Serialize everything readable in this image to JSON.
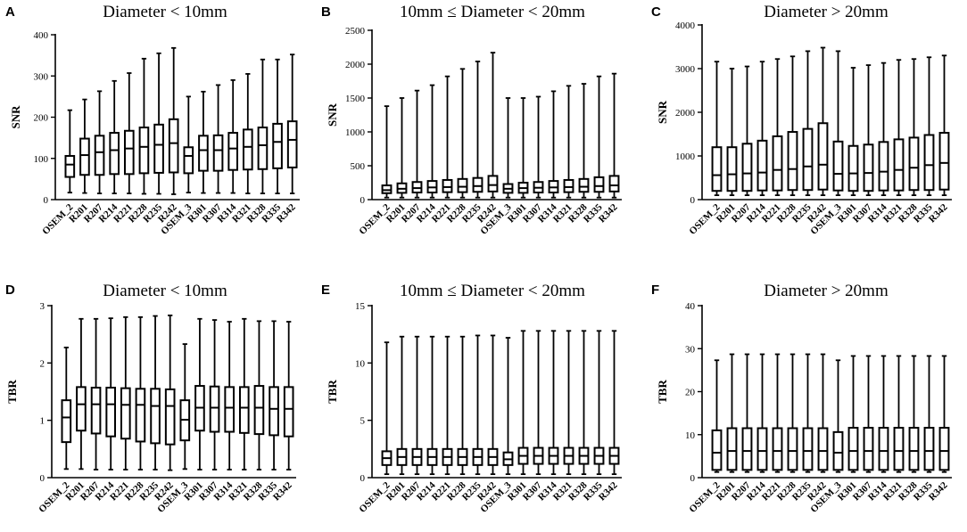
{
  "chart_data": [
    {
      "letter": "A",
      "type": "boxplot",
      "title": "Diameter < 10mm",
      "ylabel": "SNR",
      "ylim": [
        0,
        400
      ],
      "yticks": [
        "0",
        "100",
        "200",
        "300",
        "400"
      ],
      "categories": [
        "OSEM_2",
        "R201",
        "R207",
        "R214",
        "R221",
        "R228",
        "R235",
        "R242",
        "OSEM_3",
        "R301",
        "R307",
        "R314",
        "R321",
        "R328",
        "R335",
        "R342"
      ],
      "boxes": [
        {
          "min": 17,
          "q1": 55,
          "median": 85,
          "q3": 106,
          "max": 217
        },
        {
          "min": 16,
          "q1": 60,
          "median": 108,
          "q3": 148,
          "max": 243
        },
        {
          "min": 15,
          "q1": 60,
          "median": 115,
          "q3": 155,
          "max": 263
        },
        {
          "min": 15,
          "q1": 62,
          "median": 120,
          "q3": 162,
          "max": 288
        },
        {
          "min": 15,
          "q1": 62,
          "median": 124,
          "q3": 167,
          "max": 307
        },
        {
          "min": 14,
          "q1": 64,
          "median": 128,
          "q3": 175,
          "max": 342
        },
        {
          "min": 14,
          "q1": 65,
          "median": 133,
          "q3": 182,
          "max": 355
        },
        {
          "min": 13,
          "q1": 66,
          "median": 137,
          "q3": 195,
          "max": 368
        },
        {
          "min": 17,
          "q1": 64,
          "median": 106,
          "q3": 127,
          "max": 250
        },
        {
          "min": 16,
          "q1": 70,
          "median": 120,
          "q3": 155,
          "max": 262
        },
        {
          "min": 16,
          "q1": 70,
          "median": 120,
          "q3": 156,
          "max": 278
        },
        {
          "min": 16,
          "q1": 72,
          "median": 124,
          "q3": 162,
          "max": 290
        },
        {
          "min": 15,
          "q1": 73,
          "median": 128,
          "q3": 170,
          "max": 305
        },
        {
          "min": 15,
          "q1": 74,
          "median": 132,
          "q3": 175,
          "max": 340
        },
        {
          "min": 15,
          "q1": 76,
          "median": 140,
          "q3": 184,
          "max": 340
        },
        {
          "min": 15,
          "q1": 78,
          "median": 145,
          "q3": 190,
          "max": 352
        }
      ]
    },
    {
      "letter": "B",
      "type": "boxplot",
      "title": "10mm ≤ Diameter < 20mm",
      "ylabel": "SNR",
      "ylim": [
        0,
        2500
      ],
      "yticks": [
        "0",
        "500",
        "1000",
        "1500",
        "2000",
        "2500"
      ],
      "categories": [
        "OSEM_2",
        "R201",
        "R207",
        "R214",
        "R221",
        "R228",
        "R235",
        "R242",
        "OSEM_3",
        "R301",
        "R307",
        "R314",
        "R321",
        "R328",
        "R335",
        "R342"
      ],
      "boxes": [
        {
          "min": 30,
          "q1": 95,
          "median": 140,
          "q3": 210,
          "max": 1380
        },
        {
          "min": 30,
          "q1": 100,
          "median": 160,
          "q3": 240,
          "max": 1500
        },
        {
          "min": 30,
          "q1": 105,
          "median": 170,
          "q3": 260,
          "max": 1610
        },
        {
          "min": 30,
          "q1": 105,
          "median": 180,
          "q3": 275,
          "max": 1690
        },
        {
          "min": 30,
          "q1": 110,
          "median": 185,
          "q3": 290,
          "max": 1820
        },
        {
          "min": 30,
          "q1": 110,
          "median": 190,
          "q3": 305,
          "max": 1930
        },
        {
          "min": 30,
          "q1": 115,
          "median": 200,
          "q3": 320,
          "max": 2040
        },
        {
          "min": 30,
          "q1": 120,
          "median": 215,
          "q3": 350,
          "max": 2170
        },
        {
          "min": 30,
          "q1": 100,
          "median": 160,
          "q3": 230,
          "max": 1500
        },
        {
          "min": 30,
          "q1": 100,
          "median": 170,
          "q3": 250,
          "max": 1500
        },
        {
          "min": 30,
          "q1": 105,
          "median": 175,
          "q3": 260,
          "max": 1520
        },
        {
          "min": 30,
          "q1": 105,
          "median": 180,
          "q3": 275,
          "max": 1600
        },
        {
          "min": 30,
          "q1": 110,
          "median": 185,
          "q3": 290,
          "max": 1680
        },
        {
          "min": 30,
          "q1": 115,
          "median": 190,
          "q3": 305,
          "max": 1710
        },
        {
          "min": 30,
          "q1": 115,
          "median": 200,
          "q3": 330,
          "max": 1820
        },
        {
          "min": 30,
          "q1": 120,
          "median": 210,
          "q3": 350,
          "max": 1860
        }
      ]
    },
    {
      "letter": "C",
      "type": "boxplot",
      "title": "Diameter > 20mm",
      "ylabel": "SNR",
      "ylim": [
        0,
        4000
      ],
      "yticks": [
        "0",
        "1000",
        "2000",
        "3000",
        "4000"
      ],
      "categories": [
        "OSEM_2",
        "R201",
        "R207",
        "R214",
        "R221",
        "R228",
        "R235",
        "R242",
        "OSEM_3",
        "R301",
        "R307",
        "R314",
        "R321",
        "R328",
        "R335",
        "R342"
      ],
      "boxes": [
        {
          "min": 100,
          "q1": 200,
          "median": 560,
          "q3": 1200,
          "max": 3160
        },
        {
          "min": 100,
          "q1": 200,
          "median": 580,
          "q3": 1200,
          "max": 3000
        },
        {
          "min": 100,
          "q1": 200,
          "median": 600,
          "q3": 1280,
          "max": 3050
        },
        {
          "min": 100,
          "q1": 210,
          "median": 620,
          "q3": 1350,
          "max": 3160
        },
        {
          "min": 100,
          "q1": 210,
          "median": 680,
          "q3": 1450,
          "max": 3220
        },
        {
          "min": 100,
          "q1": 220,
          "median": 700,
          "q3": 1550,
          "max": 3280
        },
        {
          "min": 100,
          "q1": 220,
          "median": 760,
          "q3": 1620,
          "max": 3400
        },
        {
          "min": 100,
          "q1": 230,
          "median": 800,
          "q3": 1750,
          "max": 3480
        },
        {
          "min": 100,
          "q1": 210,
          "median": 590,
          "q3": 1330,
          "max": 3400
        },
        {
          "min": 100,
          "q1": 200,
          "median": 600,
          "q3": 1230,
          "max": 3020
        },
        {
          "min": 100,
          "q1": 200,
          "median": 610,
          "q3": 1260,
          "max": 3080
        },
        {
          "min": 100,
          "q1": 210,
          "median": 640,
          "q3": 1320,
          "max": 3130
        },
        {
          "min": 100,
          "q1": 210,
          "median": 680,
          "q3": 1380,
          "max": 3200
        },
        {
          "min": 100,
          "q1": 220,
          "median": 730,
          "q3": 1420,
          "max": 3220
        },
        {
          "min": 100,
          "q1": 220,
          "median": 790,
          "q3": 1480,
          "max": 3260
        },
        {
          "min": 100,
          "q1": 230,
          "median": 840,
          "q3": 1530,
          "max": 3300
        }
      ]
    },
    {
      "letter": "D",
      "type": "boxplot",
      "title": "Diameter < 10mm",
      "ylabel": "TBR",
      "ylim": [
        0,
        3
      ],
      "yticks": [
        "0",
        "1",
        "2",
        "3"
      ],
      "categories": [
        "OSEM_2",
        "R201",
        "R207",
        "R214",
        "R221",
        "R228",
        "R235",
        "R242",
        "OSEM_3",
        "R301",
        "R307",
        "R314",
        "R321",
        "R328",
        "R335",
        "R342"
      ],
      "boxes": [
        {
          "min": 0.15,
          "q1": 0.62,
          "median": 1.05,
          "q3": 1.35,
          "max": 2.27
        },
        {
          "min": 0.15,
          "q1": 0.82,
          "median": 1.28,
          "q3": 1.58,
          "max": 2.77
        },
        {
          "min": 0.14,
          "q1": 0.77,
          "median": 1.28,
          "q3": 1.57,
          "max": 2.77
        },
        {
          "min": 0.14,
          "q1": 0.72,
          "median": 1.28,
          "q3": 1.57,
          "max": 2.78
        },
        {
          "min": 0.14,
          "q1": 0.68,
          "median": 1.27,
          "q3": 1.56,
          "max": 2.8
        },
        {
          "min": 0.14,
          "q1": 0.63,
          "median": 1.27,
          "q3": 1.55,
          "max": 2.8
        },
        {
          "min": 0.14,
          "q1": 0.6,
          "median": 1.25,
          "q3": 1.55,
          "max": 2.82
        },
        {
          "min": 0.13,
          "q1": 0.58,
          "median": 1.25,
          "q3": 1.54,
          "max": 2.83
        },
        {
          "min": 0.15,
          "q1": 0.65,
          "median": 1.01,
          "q3": 1.35,
          "max": 2.33
        },
        {
          "min": 0.14,
          "q1": 0.82,
          "median": 1.22,
          "q3": 1.6,
          "max": 2.77
        },
        {
          "min": 0.14,
          "q1": 0.8,
          "median": 1.22,
          "q3": 1.59,
          "max": 2.75
        },
        {
          "min": 0.14,
          "q1": 0.8,
          "median": 1.22,
          "q3": 1.58,
          "max": 2.72
        },
        {
          "min": 0.14,
          "q1": 0.78,
          "median": 1.22,
          "q3": 1.58,
          "max": 2.77
        },
        {
          "min": 0.14,
          "q1": 0.76,
          "median": 1.22,
          "q3": 1.6,
          "max": 2.73
        },
        {
          "min": 0.14,
          "q1": 0.74,
          "median": 1.2,
          "q3": 1.58,
          "max": 2.73
        },
        {
          "min": 0.14,
          "q1": 0.72,
          "median": 1.2,
          "q3": 1.58,
          "max": 2.72
        }
      ]
    },
    {
      "letter": "E",
      "type": "boxplot",
      "title": "10mm ≤ Diameter < 20mm",
      "ylabel": "TBR",
      "ylim": [
        0,
        15
      ],
      "yticks": [
        "0",
        "5",
        "10",
        "15"
      ],
      "categories": [
        "OSEM_2",
        "R201",
        "R207",
        "R214",
        "R221",
        "R228",
        "R235",
        "R242",
        "OSEM_3",
        "R301",
        "R307",
        "R314",
        "R321",
        "R328",
        "R335",
        "R342"
      ],
      "boxes": [
        {
          "min": 0.3,
          "q1": 1.1,
          "median": 1.7,
          "q3": 2.3,
          "max": 11.8
        },
        {
          "min": 0.3,
          "q1": 1.1,
          "median": 1.8,
          "q3": 2.5,
          "max": 12.3
        },
        {
          "min": 0.3,
          "q1": 1.1,
          "median": 1.8,
          "q3": 2.5,
          "max": 12.3
        },
        {
          "min": 0.3,
          "q1": 1.1,
          "median": 1.8,
          "q3": 2.5,
          "max": 12.3
        },
        {
          "min": 0.3,
          "q1": 1.1,
          "median": 1.8,
          "q3": 2.5,
          "max": 12.3
        },
        {
          "min": 0.3,
          "q1": 1.1,
          "median": 1.8,
          "q3": 2.5,
          "max": 12.3
        },
        {
          "min": 0.3,
          "q1": 1.1,
          "median": 1.8,
          "q3": 2.5,
          "max": 12.4
        },
        {
          "min": 0.3,
          "q1": 1.1,
          "median": 1.8,
          "q3": 2.5,
          "max": 12.4
        },
        {
          "min": 0.3,
          "q1": 1.1,
          "median": 1.6,
          "q3": 2.2,
          "max": 12.2
        },
        {
          "min": 0.3,
          "q1": 1.2,
          "median": 1.9,
          "q3": 2.6,
          "max": 12.8
        },
        {
          "min": 0.3,
          "q1": 1.2,
          "median": 1.9,
          "q3": 2.6,
          "max": 12.8
        },
        {
          "min": 0.3,
          "q1": 1.2,
          "median": 1.9,
          "q3": 2.6,
          "max": 12.8
        },
        {
          "min": 0.3,
          "q1": 1.2,
          "median": 1.9,
          "q3": 2.6,
          "max": 12.8
        },
        {
          "min": 0.3,
          "q1": 1.2,
          "median": 1.9,
          "q3": 2.6,
          "max": 12.8
        },
        {
          "min": 0.3,
          "q1": 1.2,
          "median": 1.9,
          "q3": 2.6,
          "max": 12.8
        },
        {
          "min": 0.3,
          "q1": 1.2,
          "median": 1.9,
          "q3": 2.6,
          "max": 12.8
        }
      ]
    },
    {
      "letter": "F",
      "type": "boxplot",
      "title": "Diameter > 20mm",
      "ylabel": "TBR",
      "ylim": [
        0,
        40
      ],
      "yticks": [
        "0",
        "10",
        "20",
        "30",
        "40"
      ],
      "categories": [
        "OSEM_2",
        "R201",
        "R207",
        "R214",
        "R221",
        "R228",
        "R235",
        "R242",
        "OSEM_3",
        "R301",
        "R307",
        "R314",
        "R321",
        "R328",
        "R335",
        "R342"
      ],
      "boxes": [
        {
          "min": 1.3,
          "q1": 1.8,
          "median": 5.8,
          "q3": 11.0,
          "max": 27.3
        },
        {
          "min": 1.3,
          "q1": 1.8,
          "median": 6.2,
          "q3": 11.5,
          "max": 28.7
        },
        {
          "min": 1.3,
          "q1": 1.8,
          "median": 6.2,
          "q3": 11.5,
          "max": 28.7
        },
        {
          "min": 1.3,
          "q1": 1.8,
          "median": 6.2,
          "q3": 11.5,
          "max": 28.7
        },
        {
          "min": 1.3,
          "q1": 1.8,
          "median": 6.2,
          "q3": 11.5,
          "max": 28.7
        },
        {
          "min": 1.3,
          "q1": 1.8,
          "median": 6.2,
          "q3": 11.5,
          "max": 28.7
        },
        {
          "min": 1.3,
          "q1": 1.8,
          "median": 6.2,
          "q3": 11.5,
          "max": 28.7
        },
        {
          "min": 1.3,
          "q1": 1.8,
          "median": 6.2,
          "q3": 11.5,
          "max": 28.7
        },
        {
          "min": 1.3,
          "q1": 1.8,
          "median": 5.8,
          "q3": 10.6,
          "max": 27.3
        },
        {
          "min": 1.3,
          "q1": 1.8,
          "median": 6.2,
          "q3": 11.6,
          "max": 28.3
        },
        {
          "min": 1.3,
          "q1": 1.8,
          "median": 6.2,
          "q3": 11.6,
          "max": 28.3
        },
        {
          "min": 1.3,
          "q1": 1.8,
          "median": 6.2,
          "q3": 11.6,
          "max": 28.3
        },
        {
          "min": 1.3,
          "q1": 1.8,
          "median": 6.2,
          "q3": 11.6,
          "max": 28.3
        },
        {
          "min": 1.3,
          "q1": 1.8,
          "median": 6.2,
          "q3": 11.6,
          "max": 28.3
        },
        {
          "min": 1.3,
          "q1": 1.8,
          "median": 6.2,
          "q3": 11.6,
          "max": 28.3
        },
        {
          "min": 1.3,
          "q1": 1.8,
          "median": 6.2,
          "q3": 11.6,
          "max": 28.3
        }
      ]
    }
  ]
}
